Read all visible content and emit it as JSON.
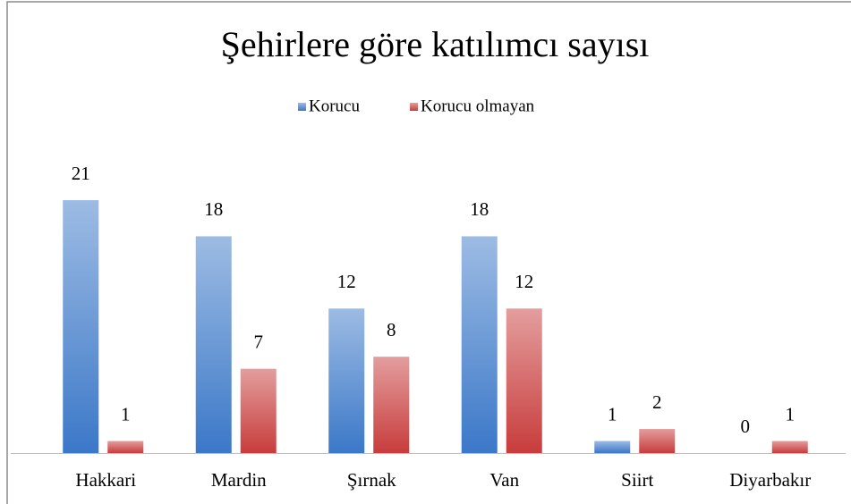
{
  "chart_data": {
    "type": "bar",
    "title": "Şehirlere göre katılımcı sayısı",
    "categories": [
      "Hakkari",
      "Mardin",
      "Şırnak",
      "Van",
      "Siirt",
      "Diyarbakır"
    ],
    "series": [
      {
        "name": "Korucu",
        "color": "#3b78c8",
        "values": [
          21,
          18,
          12,
          18,
          1,
          0
        ]
      },
      {
        "name": "Korucu olmayan",
        "color": "#c83c3c",
        "values": [
          1,
          7,
          8,
          12,
          2,
          1
        ]
      }
    ],
    "legend": "top"
  }
}
